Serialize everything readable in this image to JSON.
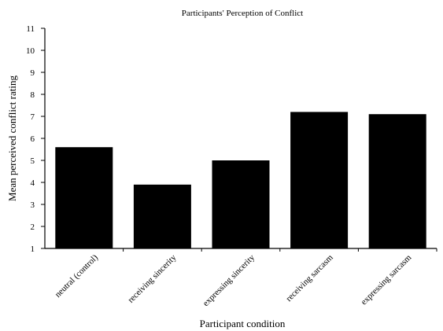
{
  "chart_data": {
    "type": "bar",
    "title": "Participants' Perception of Conflict",
    "xlabel": "Participant condition",
    "ylabel": "Mean perceived conflict rating",
    "categories": [
      "neutral (control)",
      "receiving sincerity",
      "expressing sincerity",
      "receiving sarcasm",
      "expressing sarcasm"
    ],
    "values": [
      5.6,
      3.9,
      5.0,
      7.2,
      7.1
    ],
    "ylim": [
      1,
      11
    ],
    "yticks": [
      "1",
      "2",
      "3",
      "4",
      "5",
      "6",
      "7",
      "8",
      "9",
      "10",
      "11"
    ],
    "grid": false,
    "legend": "none",
    "bar_color": "#000000"
  }
}
